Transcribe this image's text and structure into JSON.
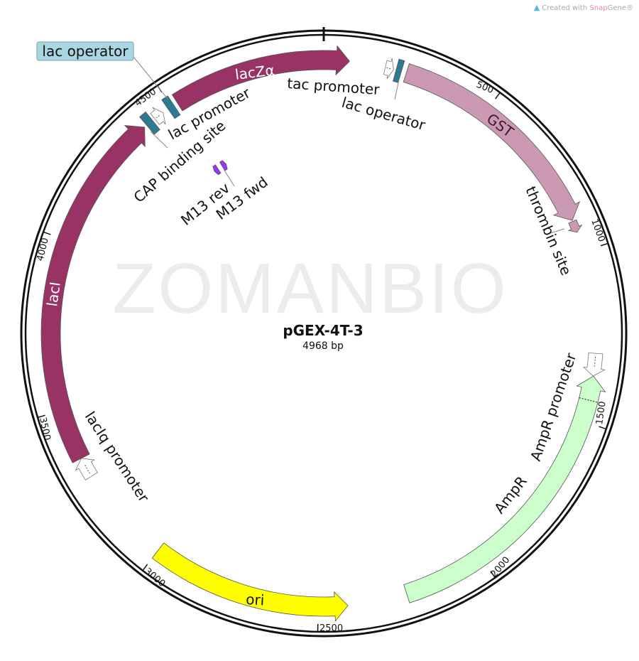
{
  "credit": {
    "prefix": "Created with ",
    "brand_a": "Snap",
    "brand_b": "Gene®",
    "icon": "snapgene-logo-icon"
  },
  "watermark": "ZOMANBIO",
  "plasmid": {
    "name": "pGEX-4T-3",
    "length_label": "4968 bp",
    "length": 4968
  },
  "ticks": [
    "500",
    "1000",
    "1500",
    "2000",
    "2500",
    "3000",
    "3500",
    "4000",
    "4500"
  ],
  "features": [
    {
      "id": "lacZa",
      "label": "lacZα",
      "start": 4520,
      "end": 75,
      "direction": "forward",
      "style": "arrow",
      "color": "#993366"
    },
    {
      "id": "tac-promoter",
      "label": "tac promoter",
      "start": 180,
      "end": 205,
      "direction": "forward",
      "style": "promoter",
      "color": "#ffffff"
    },
    {
      "id": "lac-operator-2",
      "label": "lac operator",
      "start": 212,
      "end": 228,
      "direction": "none",
      "style": "box",
      "color": "#2c7a94"
    },
    {
      "id": "GST",
      "label": "GST",
      "start": 243,
      "end": 905,
      "direction": "forward",
      "style": "arrow",
      "color": "#cc99b4"
    },
    {
      "id": "thrombin-site",
      "label": "thrombin site",
      "start": 908,
      "end": 942,
      "direction": "forward",
      "style": "small-arrow",
      "color": "#cc99b4"
    },
    {
      "id": "AmpR-promoter",
      "label": "AmpR promoter",
      "start": 1300,
      "end": 1366,
      "direction": "forward",
      "style": "promoter",
      "color": "#ffffff"
    },
    {
      "id": "AmpR",
      "label": "AmpR",
      "start": 1366,
      "end": 2240,
      "direction": "reverse",
      "style": "arrow",
      "color": "#ccffcc",
      "divider": 1437
    },
    {
      "id": "ori",
      "label": "ori",
      "start": 2414,
      "end": 3000,
      "direction": "reverse",
      "style": "arrow",
      "color": "#ffff00"
    },
    {
      "id": "lacIq-promoter",
      "label": "lacIq promoter",
      "start": 3290,
      "end": 3350,
      "direction": "forward",
      "style": "promoter",
      "color": "#ffffff"
    },
    {
      "id": "lacI",
      "label": "lacI",
      "start": 3350,
      "end": 4402,
      "direction": "forward",
      "style": "arrow",
      "color": "#993366"
    },
    {
      "id": "CAP-binding-site",
      "label": "CAP binding site",
      "start": 4410,
      "end": 4432,
      "direction": "none",
      "style": "box",
      "color": "#2c7a94"
    },
    {
      "id": "lac-promoter",
      "label": "lac promoter",
      "start": 4440,
      "end": 4470,
      "direction": "forward",
      "style": "promoter",
      "color": "#ffffff"
    },
    {
      "id": "lac-operator-1",
      "label": "lac operator",
      "start": 4488,
      "end": 4508,
      "direction": "none",
      "style": "box",
      "color": "#2c7a94"
    },
    {
      "id": "M13-rev",
      "label": "M13 rev",
      "start": 4498,
      "end": 4516,
      "direction": "reverse",
      "style": "primer",
      "color": "#9933ff"
    },
    {
      "id": "M13-fwd",
      "label": "M13 fwd",
      "start": 4536,
      "end": 4554,
      "direction": "forward",
      "style": "primer",
      "color": "#9933ff"
    }
  ]
}
